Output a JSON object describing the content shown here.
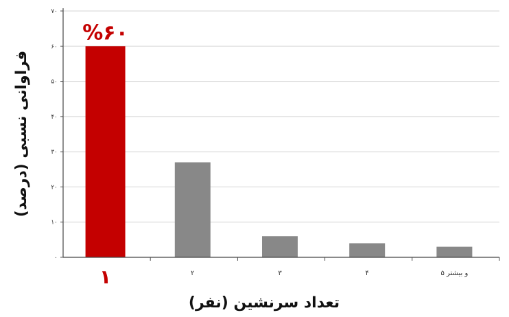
{
  "chart_data": {
    "type": "bar",
    "categories": [
      "۱",
      "۲",
      "۳",
      "۴",
      "۵ و بیشتر"
    ],
    "values": [
      60,
      27,
      6,
      4,
      3
    ],
    "ylim": [
      0,
      70
    ],
    "y_ticks": [
      "۰",
      "۱۰",
      "۲۰",
      "۳۰",
      "۴۰",
      "۵۰",
      "۶۰",
      "۷۰"
    ],
    "xlabel": "تعداد سرنشین (نفر)",
    "ylabel": "فراوانی نسبی (درصد)",
    "data_labels": [
      {
        "index": 0,
        "text": "%۶۰"
      }
    ],
    "bar_colors": [
      "#c40000",
      "#888888",
      "#888888",
      "#888888",
      "#888888"
    ],
    "highlight_color": "#c40000",
    "grid": true
  }
}
